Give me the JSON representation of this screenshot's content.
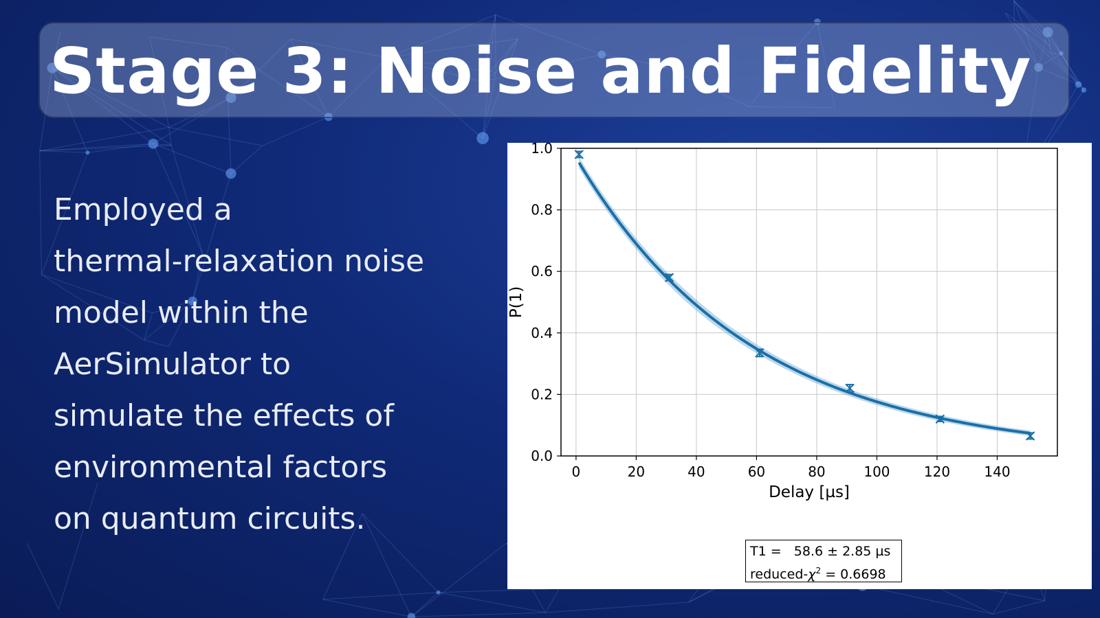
{
  "slide": {
    "title": "Stage 3: Noise and Fidelity",
    "body_lines": [
      "Employed a",
      "thermal-relaxation noise",
      "model within the",
      "AerSimulator to",
      "simulate the effects of",
      "environmental factors",
      "on quantum circuits."
    ]
  },
  "colors": {
    "background": "#102a78",
    "title_text": "#ffffff",
    "body_text": "#e8ecf6",
    "curve": "#1a6fa6",
    "band": "#6aa8d6",
    "points": "#1a6fa6"
  },
  "chart_data": {
    "type": "line",
    "xlabel": "Delay [µs]",
    "ylabel": "P(1)",
    "xlim": [
      -5,
      160
    ],
    "ylim": [
      0,
      1.0
    ],
    "xticks": [
      0,
      20,
      40,
      60,
      80,
      100,
      120,
      140
    ],
    "yticks": [
      0.0,
      0.2,
      0.4,
      0.6,
      0.8,
      1.0
    ],
    "ytick_labels": [
      "0.0",
      "0.2",
      "0.4",
      "0.6",
      "0.8",
      "1.0"
    ],
    "grid": true,
    "points": {
      "x": [
        1,
        31,
        61,
        91,
        121,
        151
      ],
      "y": [
        0.98,
        0.58,
        0.335,
        0.22,
        0.12,
        0.065
      ],
      "err": [
        0.01,
        0.01,
        0.012,
        0.012,
        0.008,
        0.01
      ]
    },
    "fit": {
      "model": "exponential",
      "amplitude": 0.97,
      "T1": 58.6,
      "offset": 0.0,
      "band_halfwidth": 0.018
    },
    "annotation": {
      "line1_label": "T1 =",
      "line1_value": "58.6 ±  2.85 µs",
      "line2_label": "reduced-",
      "line2_value": "=  0.6698"
    }
  }
}
